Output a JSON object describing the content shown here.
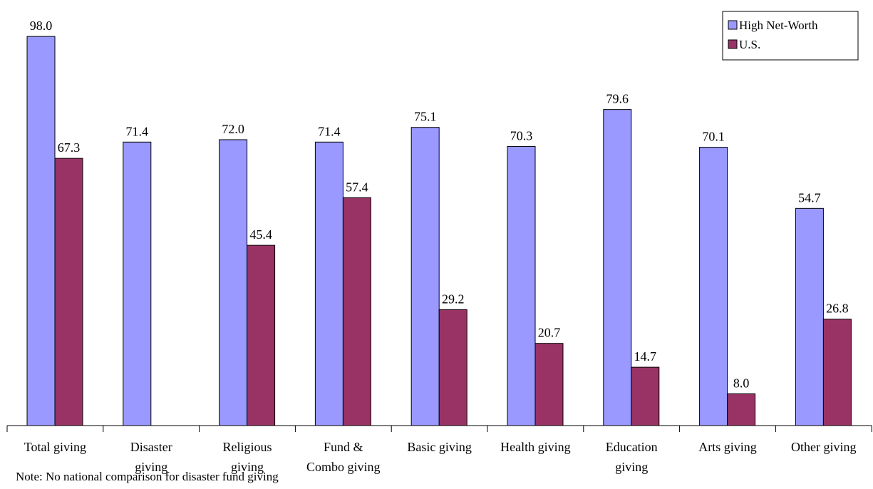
{
  "chart_data": {
    "type": "bar",
    "categories": [
      [
        "Total giving"
      ],
      [
        "Disaster",
        "giving"
      ],
      [
        "Religious",
        "giving"
      ],
      [
        "Fund &",
        "Combo giving"
      ],
      [
        "Basic giving"
      ],
      [
        "Health giving"
      ],
      [
        "Education",
        "giving"
      ],
      [
        "Arts giving"
      ],
      [
        "Other giving"
      ]
    ],
    "series": [
      {
        "name": "High Net-Worth",
        "color": "#9999ff",
        "values": [
          98.0,
          71.4,
          72.0,
          71.4,
          75.1,
          70.3,
          79.6,
          70.1,
          54.7
        ],
        "labels": [
          "98.0",
          "71.4",
          "72.0",
          "71.4",
          "75.1",
          "70.3",
          "79.6",
          "70.1",
          "54.7"
        ]
      },
      {
        "name": "U.S.",
        "color": "#993366",
        "values": [
          67.3,
          null,
          45.4,
          57.4,
          29.2,
          20.7,
          14.7,
          8.0,
          26.8
        ],
        "labels": [
          "67.3",
          "",
          "45.4",
          "57.4",
          "29.2",
          "20.7",
          "14.7",
          "8.0",
          "26.8"
        ]
      }
    ],
    "ylim": [
      0,
      100
    ],
    "grid": false,
    "legend": "top-right",
    "note": "Note: No national comparison for disaster fund giving"
  }
}
